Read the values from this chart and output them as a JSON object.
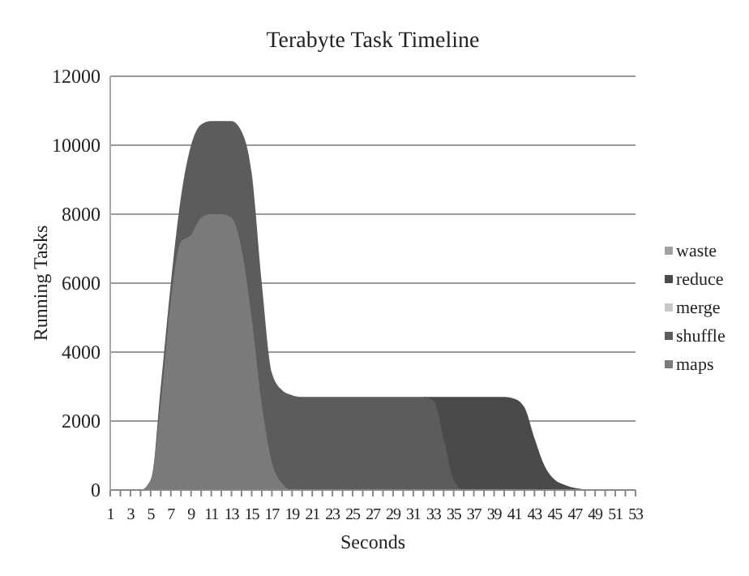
{
  "chart_data": {
    "type": "area",
    "title": "Terabyte Task Timeline",
    "xlabel": "Seconds",
    "ylabel": "Running Tasks",
    "x": [
      1,
      2,
      3,
      4,
      5,
      6,
      7,
      8,
      9,
      10,
      11,
      12,
      13,
      14,
      15,
      16,
      17,
      18,
      19,
      20,
      21,
      22,
      23,
      24,
      25,
      26,
      27,
      28,
      29,
      30,
      31,
      32,
      33,
      34,
      35,
      36,
      37,
      38,
      39,
      40,
      41,
      42,
      43,
      44,
      45,
      46,
      47,
      48,
      49,
      50,
      51,
      52,
      53
    ],
    "xlim": [
      1,
      53
    ],
    "xticks": [
      1,
      {
        "value": 2,
        "label": null
      },
      3,
      {
        "value": 4,
        "label": null
      },
      5,
      {
        "value": 6,
        "label": null
      },
      7,
      {
        "value": 8,
        "label": null
      },
      9,
      {
        "value": 10,
        "label": null
      },
      11,
      {
        "value": 12,
        "label": null
      },
      13,
      {
        "value": 14,
        "label": null
      },
      15,
      {
        "value": 16,
        "label": null
      },
      17,
      {
        "value": 18,
        "label": null
      },
      19,
      {
        "value": 20,
        "label": null
      },
      21,
      {
        "value": 22,
        "label": null
      },
      23,
      {
        "value": 24,
        "label": null
      },
      25,
      {
        "value": 26,
        "label": null
      },
      27,
      {
        "value": 28,
        "label": null
      },
      29,
      {
        "value": 30,
        "label": null
      },
      31,
      {
        "value": 32,
        "label": null
      },
      33,
      {
        "value": 34,
        "label": null
      },
      35,
      {
        "value": 36,
        "label": null
      },
      37,
      {
        "value": 38,
        "label": null
      },
      39,
      {
        "value": 40,
        "label": null
      },
      41,
      {
        "value": 42,
        "label": null
      },
      43,
      {
        "value": 44,
        "label": null
      },
      45,
      {
        "value": 46,
        "label": null
      },
      47,
      {
        "value": 48,
        "label": null
      },
      49,
      {
        "value": 50,
        "label": null
      },
      51,
      {
        "value": 52,
        "label": null
      },
      53
    ],
    "series": [
      {
        "name": "maps",
        "color": "#7a7a7a",
        "values": [
          0,
          0,
          0,
          0,
          300,
          2500,
          5500,
          7200,
          7400,
          7900,
          8000,
          8000,
          7900,
          7000,
          5000,
          2500,
          800,
          200,
          0,
          0,
          0,
          0,
          0,
          0,
          0,
          0,
          0,
          0,
          0,
          0,
          0,
          0,
          0,
          0,
          0,
          0,
          0,
          0,
          0,
          0,
          0,
          0,
          0,
          0,
          0,
          0,
          0,
          0,
          0,
          0,
          0,
          0,
          0
        ]
      },
      {
        "name": "shuffle",
        "color": "#5c5c5c",
        "values": [
          0,
          0,
          0,
          0,
          200,
          3000,
          6000,
          8500,
          10000,
          10600,
          10700,
          10700,
          10700,
          10400,
          9200,
          6000,
          3400,
          2900,
          2750,
          2700,
          2700,
          2700,
          2700,
          2700,
          2700,
          2700,
          2700,
          2700,
          2700,
          2700,
          2700,
          2700,
          2600,
          1500,
          300,
          0,
          0,
          0,
          0,
          0,
          0,
          0,
          0,
          0,
          0,
          0,
          0,
          0,
          0,
          0,
          0,
          0,
          0
        ]
      },
      {
        "name": "merge",
        "color": "#c8c8c8",
        "values": [
          null,
          null,
          null,
          null,
          null,
          null,
          null,
          null,
          null,
          null,
          null,
          null,
          null,
          null,
          null,
          null,
          null,
          null,
          null,
          null,
          null,
          null,
          null,
          null,
          null,
          null,
          null,
          null,
          null,
          null,
          null,
          null,
          null,
          null,
          null,
          null,
          null,
          null,
          null,
          null,
          null,
          null,
          null,
          null,
          null,
          null,
          null,
          null,
          null,
          null,
          null,
          null,
          null
        ]
      },
      {
        "name": "reduce",
        "color": "#4a4a4a",
        "values": [
          null,
          null,
          null,
          null,
          null,
          null,
          null,
          null,
          null,
          null,
          null,
          null,
          null,
          null,
          null,
          null,
          null,
          null,
          null,
          null,
          null,
          null,
          null,
          null,
          null,
          null,
          null,
          null,
          null,
          null,
          null,
          2700,
          2700,
          2700,
          2700,
          2700,
          2700,
          2700,
          2700,
          2700,
          2650,
          2400,
          1500,
          700,
          300,
          150,
          60,
          20,
          0,
          0,
          0,
          0,
          0
        ]
      },
      {
        "name": "waste",
        "color": "#a0a0a0",
        "values": [
          null,
          null,
          null,
          null,
          null,
          null,
          null,
          null,
          null,
          null,
          null,
          null,
          null,
          null,
          null,
          null,
          null,
          null,
          null,
          null,
          null,
          null,
          null,
          null,
          null,
          null,
          null,
          null,
          null,
          null,
          null,
          null,
          null,
          null,
          null,
          null,
          null,
          null,
          null,
          null,
          null,
          null,
          null,
          null,
          null,
          null,
          null,
          null,
          null,
          null,
          null,
          null,
          null
        ]
      }
    ],
    "ylim": [
      0,
      12000
    ],
    "yticks": [
      0,
      2000,
      4000,
      6000,
      8000,
      10000,
      12000
    ],
    "grid": "y",
    "legend": "right"
  }
}
